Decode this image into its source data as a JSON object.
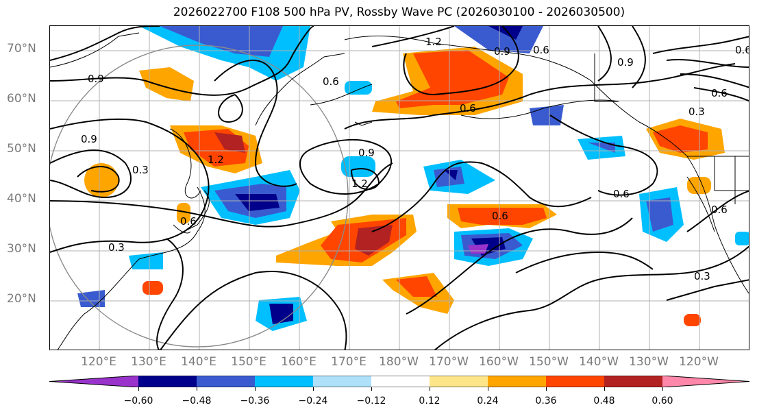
{
  "title": "2026022700 F108 500 hPa PV, Rossby Wave PC (2026030100 - 2026030500)",
  "lat_labels": [
    "70°N",
    "60°N",
    "50°N",
    "40°N",
    "30°N",
    "20°N"
  ],
  "lon_labels": [
    "120°E",
    "130°E",
    "140°E",
    "150°E",
    "160°E",
    "170°E",
    "180°W",
    "170°W",
    "160°W",
    "150°W",
    "140°W",
    "130°W",
    "120°W"
  ],
  "contour_labels": [
    "1.2",
    "0.9",
    "0.6",
    "0.9",
    "0.9",
    "0.6",
    "0.3",
    "0.9",
    "0.6",
    "1.2",
    "0.3",
    "0.3",
    "0.6",
    "0.6",
    "0.6",
    "0.3",
    "0.6",
    "1.2",
    "0.9",
    "0.6",
    "0.6"
  ],
  "colorbar": {
    "ticks": [
      "−0.60",
      "−0.48",
      "−0.36",
      "−0.24",
      "−0.12",
      "0.12",
      "0.24",
      "0.36",
      "0.48",
      "0.60"
    ],
    "colors": [
      "#9933cc",
      "#00008b",
      "#3a5bd0",
      "#00bfff",
      "#aee0fa",
      "#ffffff",
      "#fde68a",
      "#ffa500",
      "#ff4500",
      "#b22222",
      "#ff88aa"
    ]
  }
}
